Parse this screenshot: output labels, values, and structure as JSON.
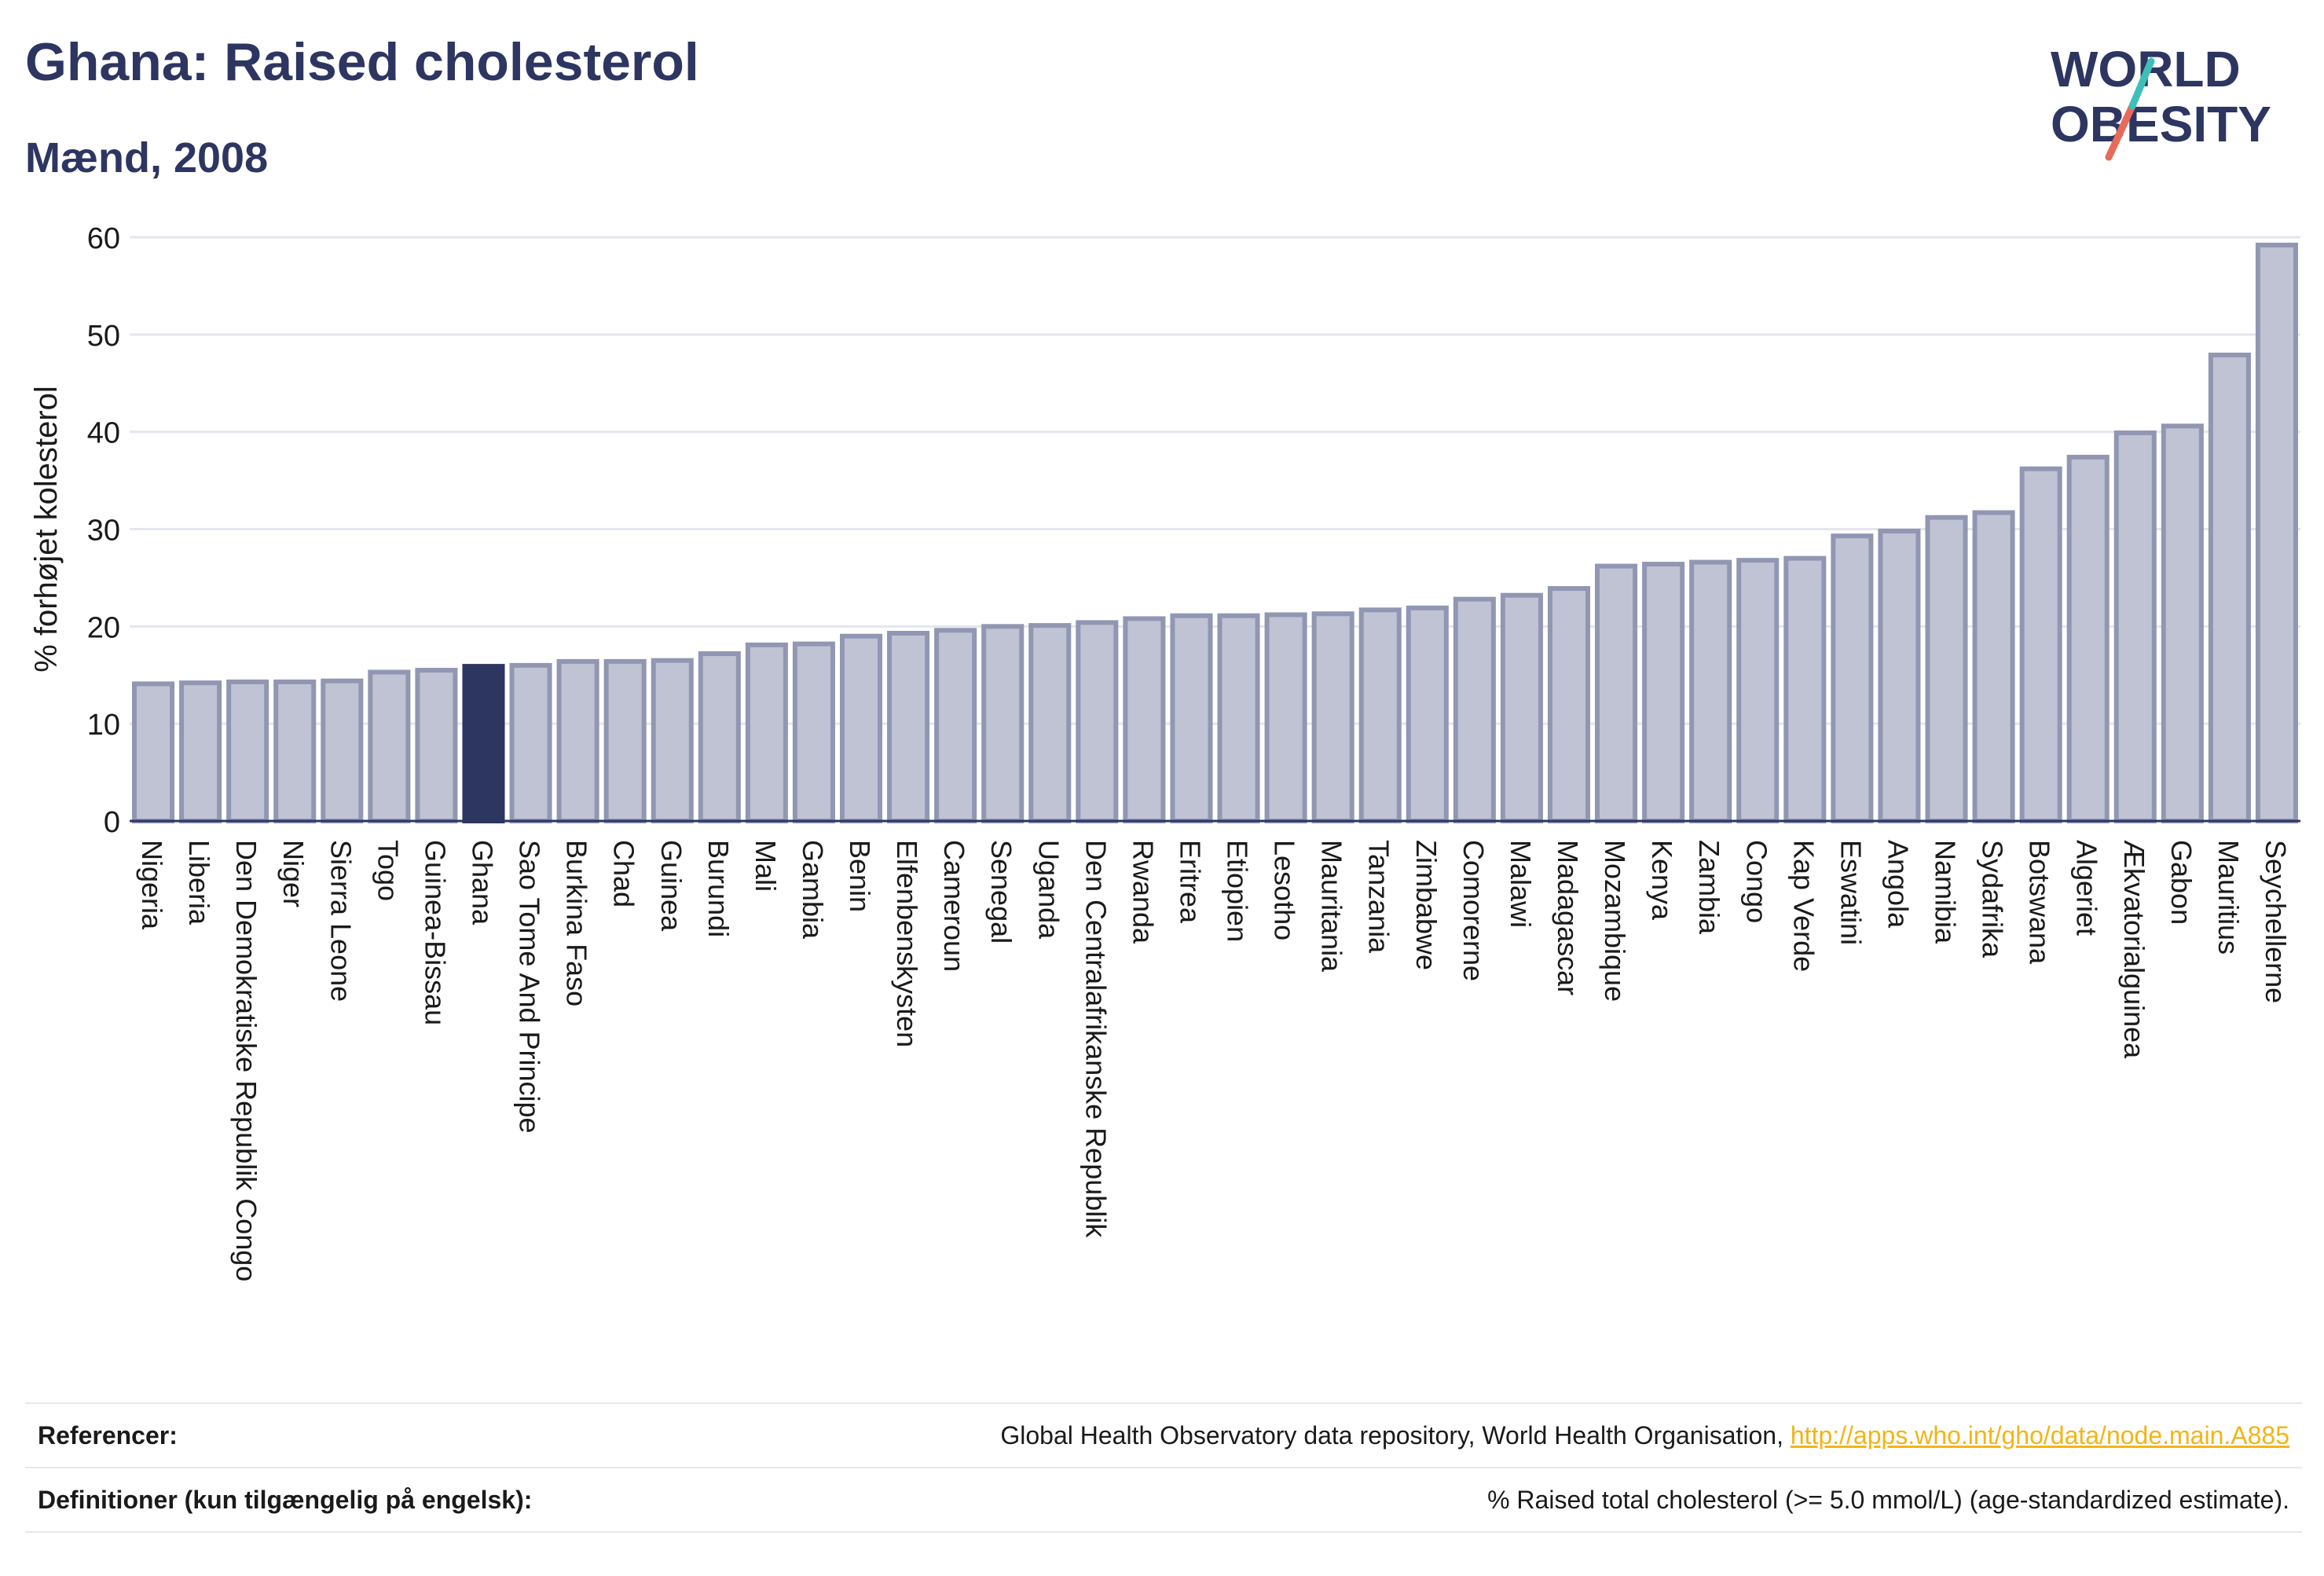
{
  "header": {
    "title": "Ghana: Raised cholesterol",
    "subtitle": "Mænd, 2008"
  },
  "logo": {
    "line1": "WORLD",
    "line2": "OBESITY"
  },
  "colors": {
    "bar_fill": "#bfc3d3",
    "bar_stroke": "#9197b2",
    "highlight": "#2d3561",
    "accent_teal": "#3fbfb9",
    "accent_coral": "#e86a5a",
    "link": "#f2b515"
  },
  "chart_data": {
    "type": "bar",
    "ylabel": "% forhøjet kolesterol",
    "ylim": [
      0,
      60
    ],
    "yticks": [
      "0",
      "10",
      "20",
      "30",
      "40",
      "50",
      "60"
    ],
    "highlight": "Ghana",
    "grid": true,
    "categories": [
      "Nigeria",
      "Liberia",
      "Den Demokratiske Republik Congo",
      "Niger",
      "Sierra Leone",
      "Togo",
      "Guinea-Bissau",
      "Ghana",
      "Sao Tome And Principe",
      "Burkina Faso",
      "Chad",
      "Guinea",
      "Burundi",
      "Mali",
      "Gambia",
      "Benin",
      "Elfenbenskysten",
      "Cameroun",
      "Senegal",
      "Uganda",
      "Den Centralafrikanske Republik",
      "Rwanda",
      "Eritrea",
      "Etiopien",
      "Lesotho",
      "Mauritania",
      "Tanzania",
      "Zimbabwe",
      "Comorerne",
      "Malawi",
      "Madagascar",
      "Mozambique",
      "Kenya",
      "Zambia",
      "Congo",
      "Kap Verde",
      "Eswatini",
      "Angola",
      "Namibia",
      "Sydafrika",
      "Botswana",
      "Algeriet",
      "Ækvatorialguinea",
      "Gabon",
      "Mauritius",
      "Seychellerne"
    ],
    "values": [
      14.1,
      14.2,
      14.3,
      14.3,
      14.4,
      15.3,
      15.5,
      15.9,
      16.0,
      16.4,
      16.4,
      16.5,
      17.2,
      18.1,
      18.2,
      19.0,
      19.3,
      19.6,
      20.0,
      20.1,
      20.4,
      20.8,
      21.1,
      21.1,
      21.2,
      21.3,
      21.7,
      21.9,
      22.8,
      23.2,
      23.9,
      26.2,
      26.4,
      26.6,
      26.8,
      27.0,
      29.3,
      29.8,
      31.2,
      31.7,
      36.2,
      37.4,
      39.9,
      40.6,
      47.9,
      59.2
    ]
  },
  "footer": {
    "references_label": "Referencer:",
    "references_text": "Global Health Observatory data repository, World Health Organisation, ",
    "references_link": "http://apps.who.int/gho/data/node.main.A885",
    "definitions_label": "Definitioner (kun tilgængelig på engelsk):",
    "definitions_text": "% Raised total cholesterol (>= 5.0 mmol/L) (age-standardized estimate)."
  }
}
